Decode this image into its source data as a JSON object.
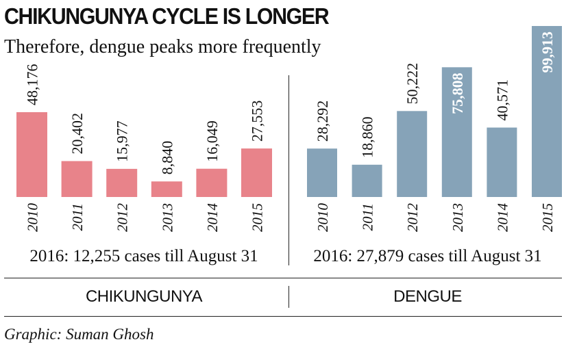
{
  "header": {
    "title": "CHIKUNGUNYA CYCLE IS LONGER",
    "subtitle": "Therefore, dengue peaks more frequently"
  },
  "colors": {
    "chikungunya": "#e8838a",
    "dengue": "#86a3b8",
    "text": "#111111",
    "rule": "#222222"
  },
  "chart_data": [
    {
      "type": "bar",
      "categories": [
        "2010",
        "2011",
        "2012",
        "2013",
        "2014",
        "2015"
      ],
      "values": [
        48176,
        20402,
        15977,
        8840,
        16049,
        27553
      ],
      "value_labels": [
        "48,176",
        "20,402",
        "15,977",
        "8,840",
        "16,049",
        "27,553"
      ],
      "note": "2016: 12,255 cases till August 31",
      "section_label": "CHIKUNGUNYA",
      "color": "#e8838a",
      "ylim": [
        0,
        60000
      ],
      "grid": false,
      "legend": "none"
    },
    {
      "type": "bar",
      "categories": [
        "2010",
        "2011",
        "2012",
        "2013",
        "2014",
        "2015"
      ],
      "values": [
        28292,
        18860,
        50222,
        75808,
        40571,
        99913
      ],
      "value_labels": [
        "28,292",
        "18,860",
        "50,222",
        "75,808",
        "40,571",
        "99,913"
      ],
      "note": "2016: 27,879 cases till August 31",
      "section_label": "DENGUE",
      "color": "#86a3b8",
      "ylim": [
        0,
        100000
      ],
      "grid": false,
      "legend": "none"
    }
  ],
  "footer": {
    "credit": "Graphic: Suman Ghosh"
  }
}
